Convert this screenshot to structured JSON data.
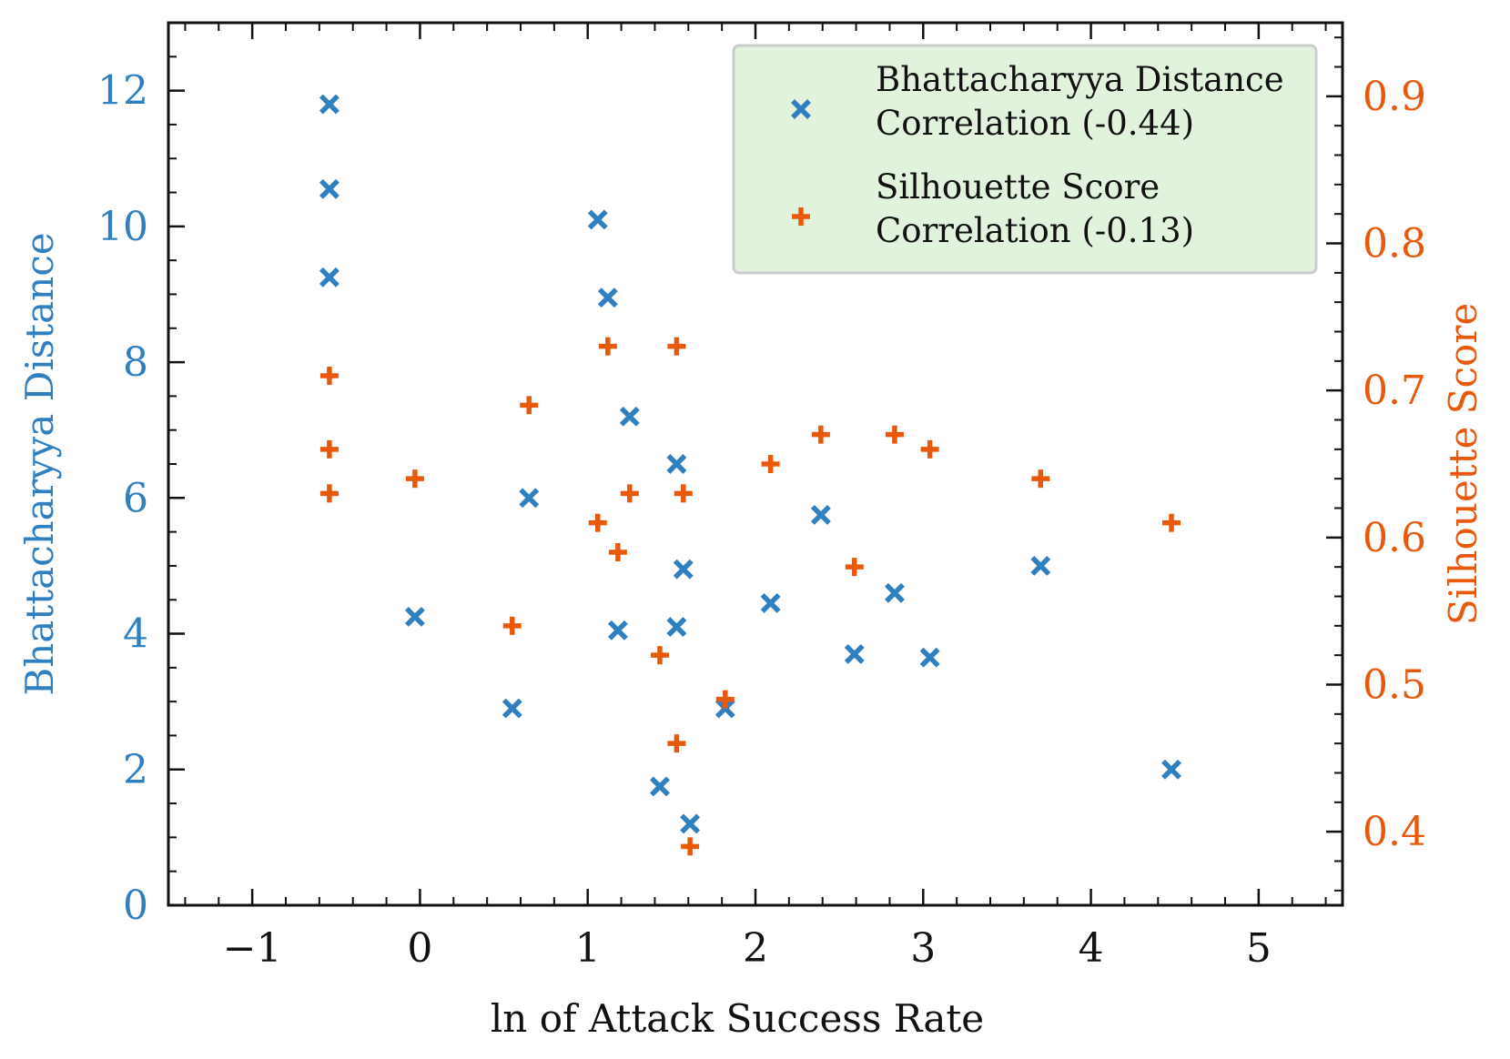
{
  "colors": {
    "left": "#2f7fc1",
    "right": "#e8590c",
    "axis": "#111111",
    "legend_bg": "#e2f3dd",
    "legend_border": "#cccccc"
  },
  "chart_data": {
    "type": "scatter",
    "xlabel": "ln of Attack Success Rate",
    "ylabel_left": "Bhattacharyya Distance",
    "ylabel_right": "Silhouette Score",
    "xlim": [
      -1.5,
      5.5
    ],
    "ylim_left": [
      0,
      13
    ],
    "ylim_right": [
      0.35,
      0.95
    ],
    "xticks": [
      -1,
      0,
      1,
      2,
      3,
      4,
      5
    ],
    "xtick_labels": [
      "−1",
      "0",
      "1",
      "2",
      "3",
      "4",
      "5"
    ],
    "yticks_left": [
      0,
      2,
      4,
      6,
      8,
      10,
      12
    ],
    "ytick_labels_left": [
      "0",
      "2",
      "4",
      "6",
      "8",
      "10",
      "12"
    ],
    "yticks_right": [
      0.4,
      0.5,
      0.6,
      0.7,
      0.8,
      0.9
    ],
    "ytick_labels_right": [
      "0.4",
      "0.5",
      "0.6",
      "0.7",
      "0.8",
      "0.9"
    ],
    "legend_position": "top-right",
    "series": [
      {
        "name": "Bhattacharyya Distance Correlation (-0.44)",
        "legend_line1": "Bhattacharyya Distance",
        "legend_line2": "Correlation (-0.44)",
        "marker": "x",
        "axis": "left",
        "points": [
          [
            -0.54,
            11.8
          ],
          [
            -0.54,
            10.55
          ],
          [
            -0.54,
            9.25
          ],
          [
            -0.03,
            4.25
          ],
          [
            0.55,
            2.9
          ],
          [
            0.65,
            6.0
          ],
          [
            1.06,
            10.1
          ],
          [
            1.12,
            8.95
          ],
          [
            1.18,
            4.05
          ],
          [
            1.25,
            7.2
          ],
          [
            1.43,
            1.75
          ],
          [
            1.53,
            6.5
          ],
          [
            1.53,
            4.1
          ],
          [
            1.57,
            4.95
          ],
          [
            1.61,
            1.2
          ],
          [
            1.82,
            2.9
          ],
          [
            2.09,
            4.45
          ],
          [
            2.39,
            5.75
          ],
          [
            2.59,
            3.7
          ],
          [
            2.83,
            4.6
          ],
          [
            3.04,
            3.65
          ],
          [
            3.7,
            5.0
          ],
          [
            4.48,
            2.0
          ]
        ]
      },
      {
        "name": "Silhouette Score Correlation (-0.13)",
        "legend_line1": "Silhouette Score",
        "legend_line2": "Correlation (-0.13)",
        "marker": "+",
        "axis": "right",
        "points": [
          [
            -0.54,
            0.71
          ],
          [
            -0.54,
            0.66
          ],
          [
            -0.54,
            0.63
          ],
          [
            -0.03,
            0.64
          ],
          [
            0.55,
            0.54
          ],
          [
            0.65,
            0.69
          ],
          [
            1.06,
            0.61
          ],
          [
            1.12,
            0.73
          ],
          [
            1.18,
            0.59
          ],
          [
            1.25,
            0.63
          ],
          [
            1.43,
            0.52
          ],
          [
            1.53,
            0.73
          ],
          [
            1.53,
            0.46
          ],
          [
            1.57,
            0.63
          ],
          [
            1.61,
            0.39
          ],
          [
            1.82,
            0.49
          ],
          [
            2.09,
            0.65
          ],
          [
            2.39,
            0.67
          ],
          [
            2.59,
            0.58
          ],
          [
            2.83,
            0.67
          ],
          [
            3.04,
            0.66
          ],
          [
            3.7,
            0.64
          ],
          [
            4.48,
            0.61
          ]
        ]
      }
    ]
  }
}
